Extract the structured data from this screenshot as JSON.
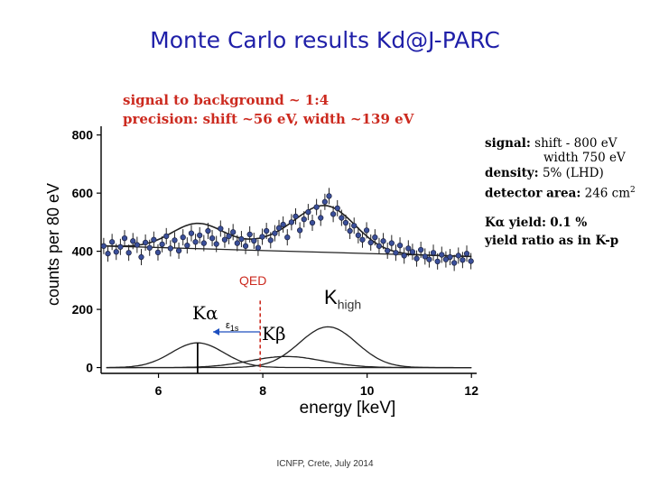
{
  "slide": {
    "title": "Monte Carlo results Kd@J-PARC",
    "footer": "ICNFP, Crete, July 2014"
  },
  "annotations": {
    "red_line1": "signal to background ~ 1:4",
    "red_line2": "precision: shift ~56 eV, width ~139 eV",
    "signal_label": "signal:",
    "signal_shift": "shift - 800 eV",
    "signal_width": "width 750 eV",
    "density_label": "density:",
    "density_value": "5% (LHD)",
    "area_label": "detector area:",
    "area_value": "246 cm",
    "area_sup": "2",
    "yield_label": "Kα  yield:",
    "yield_value": "0.1 %",
    "ratio_text": "yield ratio as in K-p",
    "qed_label": "QED",
    "k_alpha": "Kα",
    "k_beta": "Kβ",
    "k_high_main": "K",
    "k_high_sub": "high",
    "e1s_main": "ε",
    "e1s_sub": "1s"
  },
  "colors": {
    "red": "#cc2a1f",
    "blue_marker": "#3a4f9a",
    "curve": "#222222",
    "title": "#1f1fa8"
  },
  "chart_data": {
    "type": "scatter",
    "xlabel": "energy [keV]",
    "ylabel": "counts per 80 eV",
    "xlim": [
      4.9,
      12.1
    ],
    "ylim": [
      -20,
      830
    ],
    "xticks": [
      "6",
      "8",
      "10",
      "12"
    ],
    "yticks": [
      "0",
      "200",
      "400",
      "600",
      "800"
    ],
    "series": [
      {
        "kind": "data-points",
        "x": [
          4.95,
          5.03,
          5.11,
          5.19,
          5.27,
          5.35,
          5.43,
          5.51,
          5.59,
          5.67,
          5.75,
          5.83,
          5.91,
          5.99,
          6.07,
          6.15,
          6.23,
          6.31,
          6.39,
          6.47,
          6.55,
          6.63,
          6.71,
          6.79,
          6.87,
          6.95,
          7.03,
          7.11,
          7.19,
          7.27,
          7.35,
          7.43,
          7.51,
          7.59,
          7.67,
          7.75,
          7.83,
          7.91,
          7.99,
          8.07,
          8.15,
          8.23,
          8.31,
          8.39,
          8.47,
          8.55,
          8.63,
          8.71,
          8.79,
          8.87,
          8.95,
          9.03,
          9.11,
          9.19,
          9.27,
          9.35,
          9.43,
          9.51,
          9.59,
          9.67,
          9.75,
          9.83,
          9.91,
          9.99,
          10.07,
          10.15,
          10.23,
          10.31,
          10.39,
          10.47,
          10.55,
          10.63,
          10.71,
          10.79,
          10.87,
          10.95,
          11.03,
          11.11,
          11.19,
          11.27,
          11.35,
          11.43,
          11.51,
          11.59,
          11.67,
          11.75,
          11.83,
          11.91,
          11.99
        ],
        "y": [
          418,
          392,
          432,
          398,
          415,
          445,
          395,
          435,
          422,
          380,
          430,
          412,
          440,
          396,
          424,
          452,
          410,
          438,
          402,
          448,
          420,
          462,
          432,
          455,
          428,
          470,
          445,
          425,
          478,
          440,
          452,
          466,
          428,
          442,
          418,
          458,
          436,
          412,
          450,
          470,
          438,
          462,
          480,
          492,
          448,
          500,
          520,
          472,
          510,
          535,
          498,
          552,
          515,
          570,
          590,
          528,
          548,
          515,
          498,
          470,
          488,
          455,
          440,
          472,
          430,
          448,
          418,
          435,
          402,
          428,
          395,
          420,
          385,
          410,
          398,
          375,
          405,
          382,
          372,
          395,
          365,
          388,
          372,
          380,
          360,
          385,
          370,
          392,
          366
        ]
      },
      {
        "kind": "fit-curve",
        "name": "total fit"
      },
      {
        "kind": "background",
        "x": [
          5.0,
          12.0
        ],
        "y": [
          418,
          382
        ]
      },
      {
        "kind": "peak",
        "name": "Kα",
        "center": 6.75,
        "height": 85,
        "width": 0.5
      },
      {
        "kind": "peak",
        "name": "Kβ",
        "center": 8.45,
        "height": 38,
        "width": 0.7
      },
      {
        "kind": "peak",
        "name": "Khigh",
        "center": 9.25,
        "height": 140,
        "width": 0.55
      }
    ],
    "markers": [
      {
        "name": "QED",
        "x": 7.95
      },
      {
        "name": "Kα position",
        "x": 6.75
      }
    ]
  }
}
